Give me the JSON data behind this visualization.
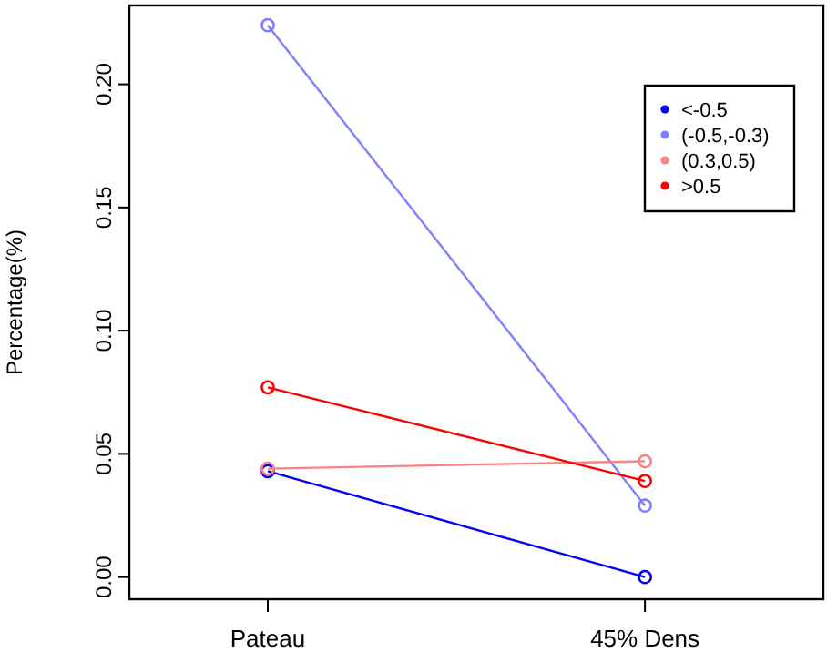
{
  "chart_data": {
    "type": "line",
    "ylabel": "Percentage(%)",
    "categories": [
      "Pateau",
      "45% Dens"
    ],
    "ylim": [
      -0.009,
      0.232
    ],
    "yticks": [
      {
        "value": 0,
        "label": "0.00"
      },
      {
        "value": 0.05,
        "label": "0.05"
      },
      {
        "value": 0.1,
        "label": "0.10"
      },
      {
        "value": 0.15,
        "label": "0.15"
      },
      {
        "value": 0.2,
        "label": "0.20"
      }
    ],
    "series": [
      {
        "name": "<-0.5",
        "color": "#0000ff",
        "values": [
          0.043,
          0.0
        ]
      },
      {
        "name": "(-0.5,-0.3)",
        "color": "#8080ff",
        "values": [
          0.224,
          0.029
        ]
      },
      {
        "name": "(0.3,0.5)",
        "color": "#ff8080",
        "values": [
          0.044,
          0.047
        ]
      },
      {
        "name": ">0.5",
        "color": "#ff0000",
        "values": [
          0.077,
          0.039
        ]
      }
    ],
    "marker": "circle",
    "line_style": "solid",
    "legend": "top right",
    "grid": false
  }
}
